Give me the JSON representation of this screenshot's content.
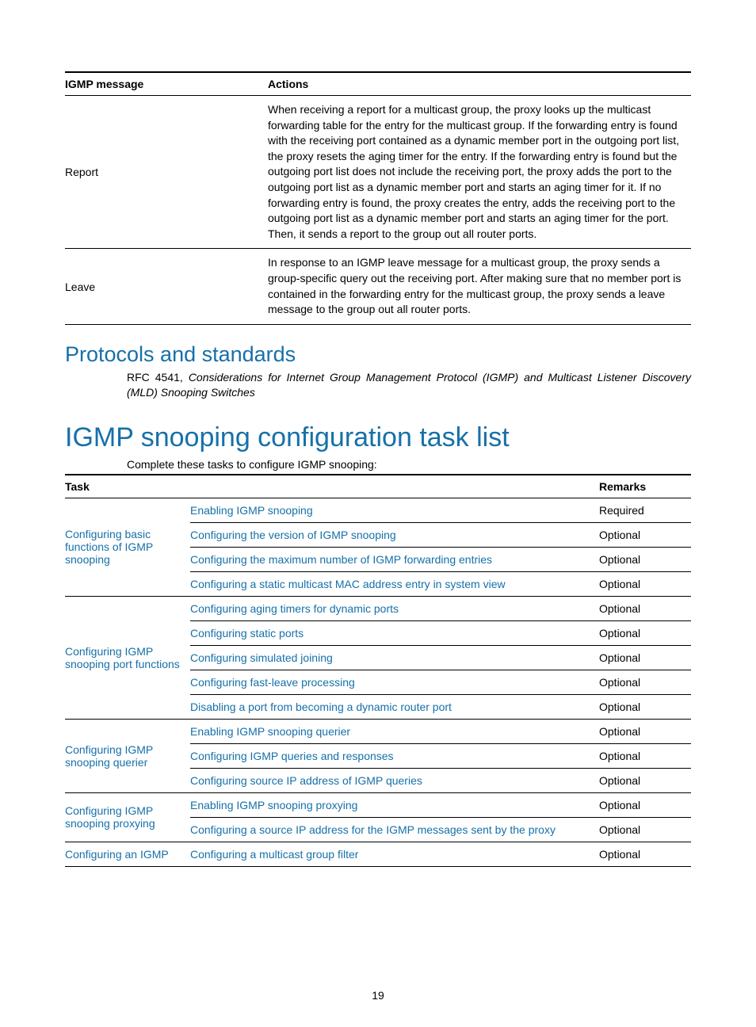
{
  "page_number": "19",
  "igmp_table": {
    "headers": [
      "IGMP message",
      "Actions"
    ],
    "rows": [
      {
        "message": "Report",
        "action": "When receiving a report for a multicast group, the proxy looks up the multicast forwarding table for the entry for the multicast group. If the forwarding entry is found with the receiving port contained as a dynamic member port in the outgoing port list, the proxy resets the aging timer for the entry. If the forwarding entry is found but the outgoing port list does not include the receiving port, the proxy adds the port to the outgoing port list as a dynamic member port and starts an aging timer for it. If no forwarding entry is found, the proxy creates the entry, adds the receiving port to the outgoing port list as a dynamic member port and starts an aging timer for the port. Then, it sends a report to the group out all router ports."
      },
      {
        "message": "Leave",
        "action": "In response to an IGMP leave message for a multicast group, the proxy sends a group-specific query out the receiving port. After making sure that no member port is contained in the forwarding entry for the multicast group, the proxy sends a leave message to the group out all router ports."
      }
    ]
  },
  "protocols": {
    "heading": "Protocols and standards",
    "rfc_prefix": "RFC 4541, ",
    "rfc_title": "Considerations for Internet Group Management Protocol (IGMP) and Multicast Listener Discovery (MLD) Snooping Switches"
  },
  "task_list": {
    "heading": "IGMP snooping configuration task list",
    "intro": "Complete these tasks to configure IGMP snooping:",
    "headers": [
      "Task",
      "",
      "Remarks"
    ],
    "groups": [
      {
        "task": "Configuring basic functions of IGMP snooping",
        "subtasks": [
          {
            "label": "Enabling IGMP snooping",
            "remark": "Required"
          },
          {
            "label": "Configuring the version of IGMP snooping",
            "remark": "Optional"
          },
          {
            "label": "Configuring the maximum number of IGMP forwarding entries",
            "remark": "Optional"
          },
          {
            "label": "Configuring a static multicast MAC address entry in system view",
            "remark": "Optional"
          }
        ]
      },
      {
        "task": "Configuring IGMP snooping port functions",
        "subtasks": [
          {
            "label": "Configuring aging timers for dynamic ports",
            "remark": "Optional"
          },
          {
            "label": "Configuring static ports",
            "remark": "Optional"
          },
          {
            "label": "Configuring simulated joining",
            "remark": "Optional"
          },
          {
            "label": "Configuring fast-leave processing",
            "remark": "Optional"
          },
          {
            "label": "Disabling a port from becoming a dynamic router port",
            "remark": "Optional"
          }
        ]
      },
      {
        "task": "Configuring IGMP snooping querier",
        "subtasks": [
          {
            "label": "Enabling IGMP snooping querier",
            "remark": "Optional"
          },
          {
            "label": "Configuring IGMP queries and responses",
            "remark": "Optional"
          },
          {
            "label": "Configuring source IP address of IGMP queries",
            "remark": "Optional"
          }
        ]
      },
      {
        "task": "Configuring IGMP snooping proxying",
        "subtasks": [
          {
            "label": "Enabling IGMP snooping proxying",
            "remark": "Optional"
          },
          {
            "label": "Configuring a source IP address for the IGMP messages sent by the proxy",
            "remark": "Optional"
          }
        ]
      },
      {
        "task": "Configuring an IGMP",
        "subtasks": [
          {
            "label": "Configuring a multicast group filter",
            "remark": "Optional"
          }
        ]
      }
    ]
  }
}
